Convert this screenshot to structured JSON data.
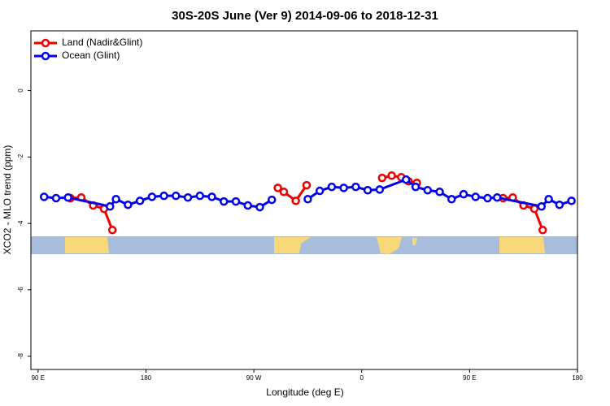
{
  "chart_data": {
    "type": "line",
    "title": "30S-20S June (Ver 9)   2014-09-06 to 2018-12-31",
    "x_label": "Longitude (deg E)",
    "y_label": "XCO2 - MLO trend (ppm)",
    "xlim": [
      84,
      540
    ],
    "ylim": [
      -8.4,
      1.8
    ],
    "xticks": [
      {
        "value": 90,
        "label": "90 E"
      },
      {
        "value": 180,
        "label": "180"
      },
      {
        "value": 270,
        "label": "90 W"
      },
      {
        "value": 360,
        "label": "0"
      },
      {
        "value": 450,
        "label": "90 E"
      },
      {
        "value": 540,
        "label": "180"
      }
    ],
    "yticks": [
      0,
      -2,
      -4,
      -6,
      -8
    ],
    "legend": "top-left",
    "series": [
      {
        "name": "Land (Nadir&Glint)",
        "color": "#ee0000",
        "x": [
          117,
          126,
          136,
          145,
          152,
          215,
          290,
          295,
          305,
          314,
          350,
          377,
          385,
          393,
          399,
          406,
          440,
          478,
          486,
          495,
          504,
          511
        ],
        "values": [
          -3.24,
          -3.22,
          -3.46,
          -3.56,
          -4.2,
          null,
          -2.93,
          -3.05,
          -3.32,
          -2.85,
          null,
          -2.63,
          -2.56,
          -2.61,
          -2.73,
          -2.78,
          null,
          -3.24,
          -3.22,
          -3.46,
          -3.56,
          -4.2
        ]
      },
      {
        "name": "Ocean (Glint)",
        "color": "#0000ee",
        "x": [
          95,
          105,
          115,
          150,
          155,
          165,
          175,
          185,
          195,
          205,
          215,
          225,
          235,
          245,
          255,
          265,
          275,
          285,
          300,
          315,
          325,
          335,
          345,
          355,
          365,
          375,
          397,
          405,
          415,
          425,
          435,
          445,
          455,
          465,
          473,
          510,
          516,
          525,
          535
        ],
        "values": [
          -3.2,
          -3.24,
          -3.22,
          -3.49,
          -3.27,
          -3.44,
          -3.32,
          -3.2,
          -3.17,
          -3.17,
          -3.22,
          -3.17,
          -3.2,
          -3.34,
          -3.34,
          -3.46,
          -3.51,
          -3.29,
          null,
          -3.27,
          -3.02,
          -2.9,
          -2.93,
          -2.9,
          -3.0,
          -2.98,
          -2.68,
          -2.9,
          -3.0,
          -3.05,
          -3.27,
          -3.12,
          -3.2,
          -3.24,
          -3.22,
          -3.49,
          -3.27,
          -3.44,
          -3.32
        ]
      }
    ]
  }
}
